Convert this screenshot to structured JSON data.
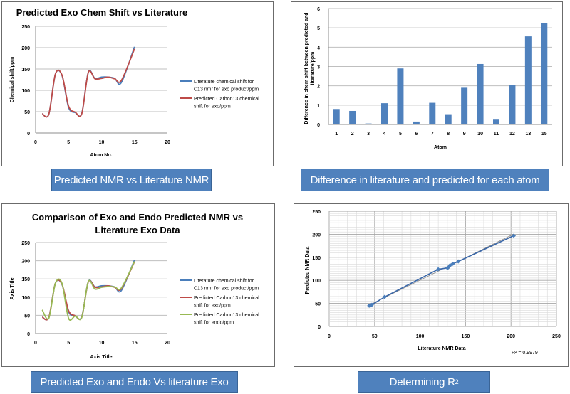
{
  "captions": {
    "top_left": "Predicted NMR vs Literature NMR",
    "top_right": "Difference in literature and predicted for each atom",
    "bottom_left": "Predicted Exo and Endo Vs literature Exo",
    "bottom_right_base": "Determining R",
    "bottom_right_sup": "2"
  },
  "colors": {
    "literature": "#4a7ebb",
    "predicted_exo": "#be4b48",
    "predicted_endo": "#98b954",
    "bar": "#4f81bd",
    "caption_bg": "#4f81bd"
  },
  "chart_data": [
    {
      "type": "line",
      "title": "Predicted Exo Chem Shift vs Literature",
      "xlabel": "Atom No.",
      "ylabel": "Chemical shift/ppm",
      "xlim": [
        0,
        20
      ],
      "ylim": [
        0,
        250
      ],
      "xticks": [
        "0",
        "5",
        "10",
        "15",
        "20"
      ],
      "yticks": [
        "0",
        "50",
        "100",
        "150",
        "200",
        "250"
      ],
      "grid": "horizontal",
      "legend": "right",
      "x": [
        1,
        2,
        3,
        4,
        5,
        6,
        7,
        8,
        9,
        10,
        11,
        12,
        13,
        15
      ],
      "series": [
        {
          "name": "Literature chemical shift for C13 nmr for exo product/ppm",
          "legend_lines": [
            "Literature chemical shift for",
            "C13 nmr for exo product/ppm"
          ],
          "color": "#4a7ebb",
          "values": [
            45,
            44,
            138,
            135,
            60,
            48,
            46,
            143,
            128,
            131,
            131,
            128,
            118,
            202
          ]
        },
        {
          "name": "Predicted Carbon13 chemical shift for exo/ppm",
          "legend_lines": [
            "Predicted Carbon13 chemical",
            "shift for exo/ppm"
          ],
          "color": "#be4b48",
          "values": [
            45,
            44,
            138,
            136,
            63,
            49,
            45,
            142,
            127,
            128,
            131,
            127,
            123,
            197
          ]
        }
      ]
    },
    {
      "type": "bar",
      "title": "",
      "xlabel": "Atom",
      "ylabel_lines": [
        "Difference in chem shift between predicted and",
        "literature/ppm"
      ],
      "categories": [
        "1",
        "2",
        "3",
        "4",
        "5",
        "6",
        "7",
        "8",
        "9",
        "10",
        "11",
        "12",
        "13",
        "15"
      ],
      "values": [
        0.8,
        0.7,
        0.05,
        1.1,
        2.9,
        0.15,
        1.12,
        0.53,
        1.9,
        3.13,
        0.25,
        2.03,
        4.56,
        5.23
      ],
      "ylim": [
        0,
        6
      ],
      "yticks": [
        "0",
        "1",
        "2",
        "3",
        "4",
        "5",
        "6"
      ],
      "grid": "horizontal",
      "color": "#4f81bd"
    },
    {
      "type": "line",
      "title_lines": [
        "Comparison of Exo and Endo Predicted NMR vs",
        "Literature Exo Data"
      ],
      "xlabel": "Axis Title",
      "ylabel": "Axis Title",
      "xlim": [
        0,
        20
      ],
      "ylim": [
        0,
        250
      ],
      "xticks": [
        "0",
        "5",
        "10",
        "15",
        "20"
      ],
      "yticks": [
        "0",
        "50",
        "100",
        "150",
        "200",
        "250"
      ],
      "grid": "horizontal",
      "legend": "right",
      "x": [
        1,
        2,
        3,
        4,
        5,
        6,
        7,
        8,
        9,
        10,
        11,
        12,
        13,
        15
      ],
      "series": [
        {
          "name": "Literature chemical shift for C13 nmr for exo product/ppm",
          "legend_lines": [
            "Literature chemical shift for",
            "C13 nmr for exo product/ppm"
          ],
          "color": "#4a7ebb",
          "values": [
            45,
            44,
            138,
            135,
            60,
            48,
            46,
            143,
            128,
            131,
            131,
            128,
            118,
            202
          ]
        },
        {
          "name": "Predicted Carbon13 chemical shift for exo/ppm",
          "legend_lines": [
            "Predicted Carbon13 chemical",
            "shift for exo/ppm"
          ],
          "color": "#be4b48",
          "values": [
            45,
            44,
            138,
            136,
            63,
            49,
            45,
            142,
            127,
            128,
            131,
            127,
            123,
            197
          ]
        },
        {
          "name": "Predicted Carbon13 chemical shift for endo/ppm",
          "legend_lines": [
            "Predicted Carbon13 chemical",
            "shift for endo/ppm"
          ],
          "color": "#98b954",
          "values": [
            65,
            42,
            138,
            138,
            42,
            48,
            44,
            143,
            122,
            127,
            129,
            128,
            125,
            198
          ]
        }
      ]
    },
    {
      "type": "scatter",
      "title": "",
      "xlabel": "Literature NMR Data",
      "ylabel": "Predicted NMR Data",
      "xlim": [
        0,
        250
      ],
      "ylim": [
        0,
        250
      ],
      "xticks": [
        "0",
        "50",
        "100",
        "150",
        "200",
        "250"
      ],
      "yticks": [
        "0",
        "50",
        "100",
        "150",
        "200",
        "250"
      ],
      "grid": "major and minor",
      "annotation": "R² = 0.9979",
      "points": {
        "x": [
          44,
          46,
          47,
          61,
          120,
          130,
          131,
          132,
          133,
          136,
          142,
          203
        ],
        "y": [
          45,
          46,
          47,
          64,
          124,
          127,
          128,
          130,
          133,
          136,
          141,
          197
        ]
      },
      "trendline": {
        "slope": 0.97,
        "intercept": 3.5
      },
      "color": "#4a7ebb"
    }
  ]
}
